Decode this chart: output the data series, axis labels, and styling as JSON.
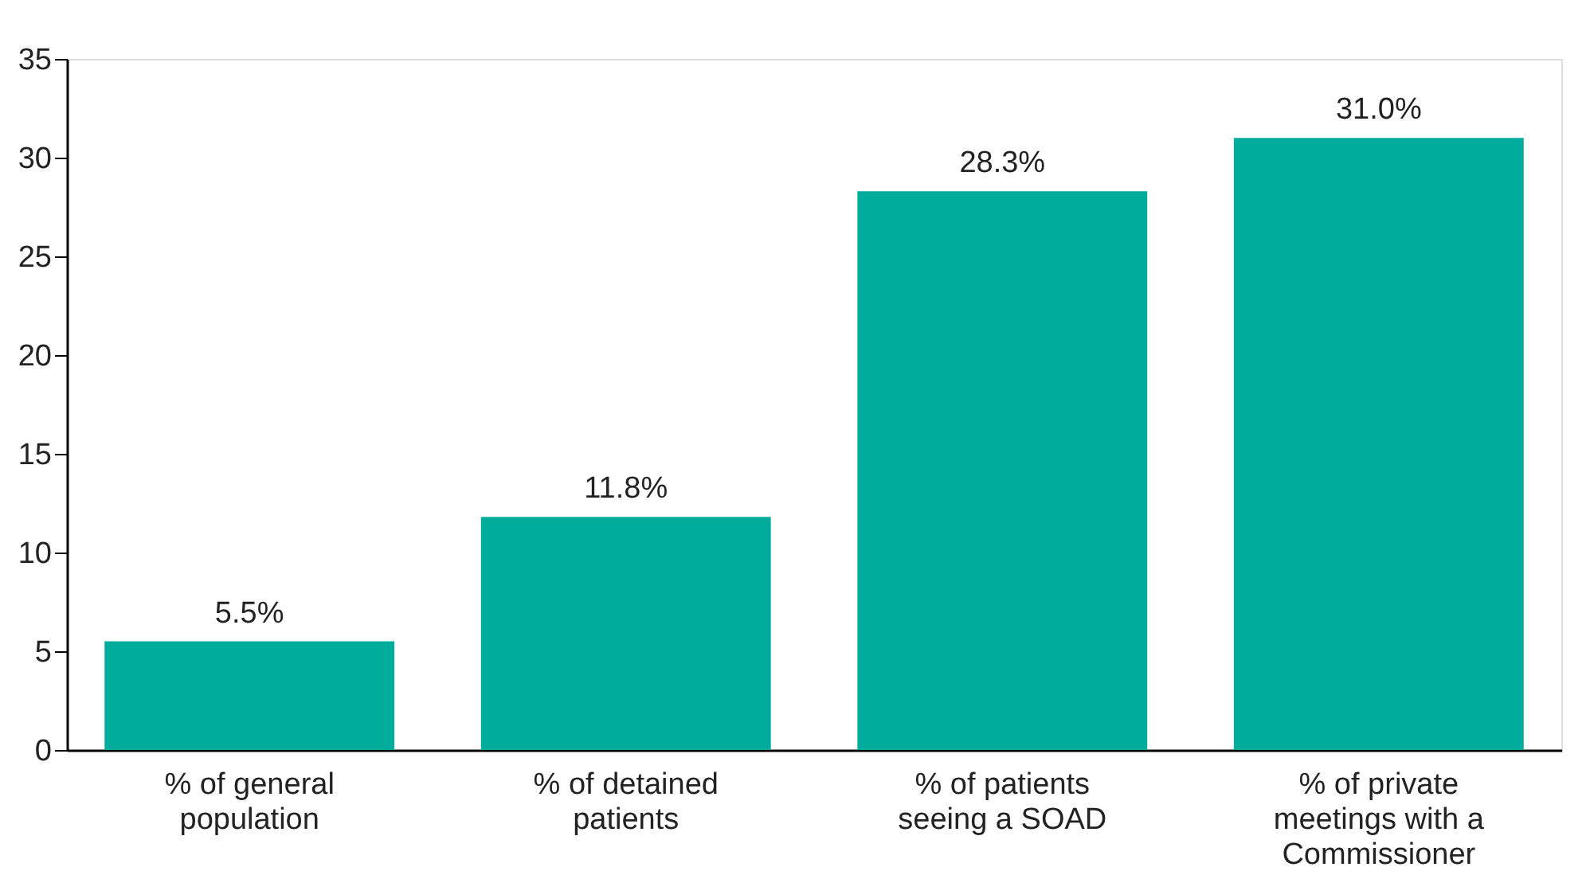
{
  "chart_data": {
    "type": "bar",
    "categories": [
      "% of general population",
      "% of detained patients",
      "% of patients seeing a SOAD",
      "% of private meetings with a Commissioner"
    ],
    "values": [
      5.5,
      11.8,
      28.3,
      31.0
    ],
    "value_labels": [
      "5.5%",
      "11.8%",
      "28.3%",
      "31.0%"
    ],
    "color": "#00ac9b",
    "ylim": [
      0,
      35
    ],
    "yticks": [
      0,
      5,
      10,
      15,
      20,
      25,
      30,
      35
    ],
    "grid": false
  }
}
